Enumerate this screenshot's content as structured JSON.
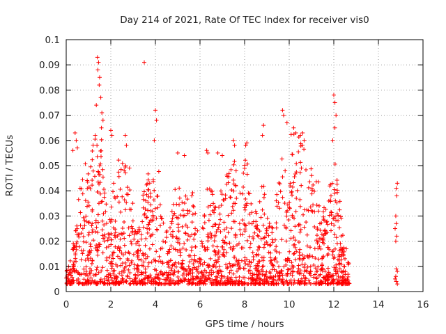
{
  "chart_data": {
    "type": "scatter",
    "title": "Day 214 of 2021, Rate Of TEC Index for receiver vis0",
    "xlabel": "GPS time / hours",
    "ylabel": "ROTI / TECUs",
    "xlim": [
      0,
      16
    ],
    "ylim": [
      0,
      0.1
    ],
    "x_ticks": [
      0,
      2,
      4,
      6,
      8,
      10,
      12,
      14,
      16
    ],
    "x_tick_labels": [
      "0",
      "2",
      "4",
      "6",
      "8",
      "10",
      "12",
      "14",
      "16"
    ],
    "y_ticks": [
      0,
      0.01,
      0.02,
      0.03,
      0.04,
      0.05,
      0.06,
      0.07,
      0.08,
      0.09,
      0.1
    ],
    "y_tick_labels": [
      "0",
      "0.01",
      "0.02",
      "0.03",
      "0.04",
      "0.05",
      "0.06",
      "0.07",
      "0.08",
      "0.09",
      "0.1"
    ],
    "grid": true,
    "legend": "none",
    "marker": "+",
    "series": [
      {
        "name": "ROTI",
        "color": "#ff0000",
        "note": "dense continuous coverage from 0 to 12.7 h (baseline 0.003-0.012, spikes to 0.093), second group 14.7-14.9 h",
        "points": [
          [
            1.4,
            0.093
          ],
          [
            1.45,
            0.091
          ],
          [
            1.42,
            0.088
          ],
          [
            1.5,
            0.085
          ],
          [
            1.48,
            0.082
          ],
          [
            1.55,
            0.077
          ],
          [
            1.6,
            0.071
          ],
          [
            1.65,
            0.068
          ],
          [
            1.58,
            0.065
          ],
          [
            1.35,
            0.074
          ],
          [
            1.3,
            0.062
          ],
          [
            1.38,
            0.058
          ],
          [
            3.5,
            0.091
          ],
          [
            4.0,
            0.072
          ],
          [
            4.05,
            0.068
          ],
          [
            3.95,
            0.06
          ],
          [
            12.0,
            0.078
          ],
          [
            12.05,
            0.075
          ],
          [
            12.1,
            0.07
          ],
          [
            12.05,
            0.065
          ],
          [
            11.95,
            0.06
          ],
          [
            9.7,
            0.072
          ],
          [
            9.75,
            0.07
          ],
          [
            9.9,
            0.067
          ],
          [
            10.2,
            0.065
          ],
          [
            10.3,
            0.063
          ],
          [
            10.5,
            0.062
          ],
          [
            10.6,
            0.063
          ],
          [
            8.85,
            0.066
          ],
          [
            8.8,
            0.062
          ],
          [
            8.1,
            0.059
          ],
          [
            8.05,
            0.058
          ],
          [
            7.5,
            0.06
          ],
          [
            7.55,
            0.058
          ],
          [
            0.4,
            0.063
          ],
          [
            0.45,
            0.06
          ],
          [
            0.5,
            0.057
          ],
          [
            0.3,
            0.056
          ],
          [
            2.0,
            0.064
          ],
          [
            2.05,
            0.062
          ],
          [
            2.65,
            0.062
          ],
          [
            2.7,
            0.058
          ],
          [
            6.3,
            0.056
          ],
          [
            6.35,
            0.055
          ],
          [
            6.8,
            0.055
          ],
          [
            7.0,
            0.054
          ],
          [
            5.0,
            0.055
          ],
          [
            5.3,
            0.054
          ],
          [
            14.85,
            0.043
          ],
          [
            14.8,
            0.041
          ],
          [
            14.82,
            0.038
          ],
          [
            14.78,
            0.03
          ],
          [
            14.8,
            0.027
          ],
          [
            14.75,
            0.025
          ],
          [
            14.82,
            0.022
          ],
          [
            14.78,
            0.02
          ],
          [
            14.8,
            0.009
          ],
          [
            14.85,
            0.008
          ],
          [
            14.78,
            0.006
          ],
          [
            14.75,
            0.005
          ],
          [
            14.8,
            0.004
          ],
          [
            14.85,
            0.003
          ]
        ]
      }
    ]
  }
}
